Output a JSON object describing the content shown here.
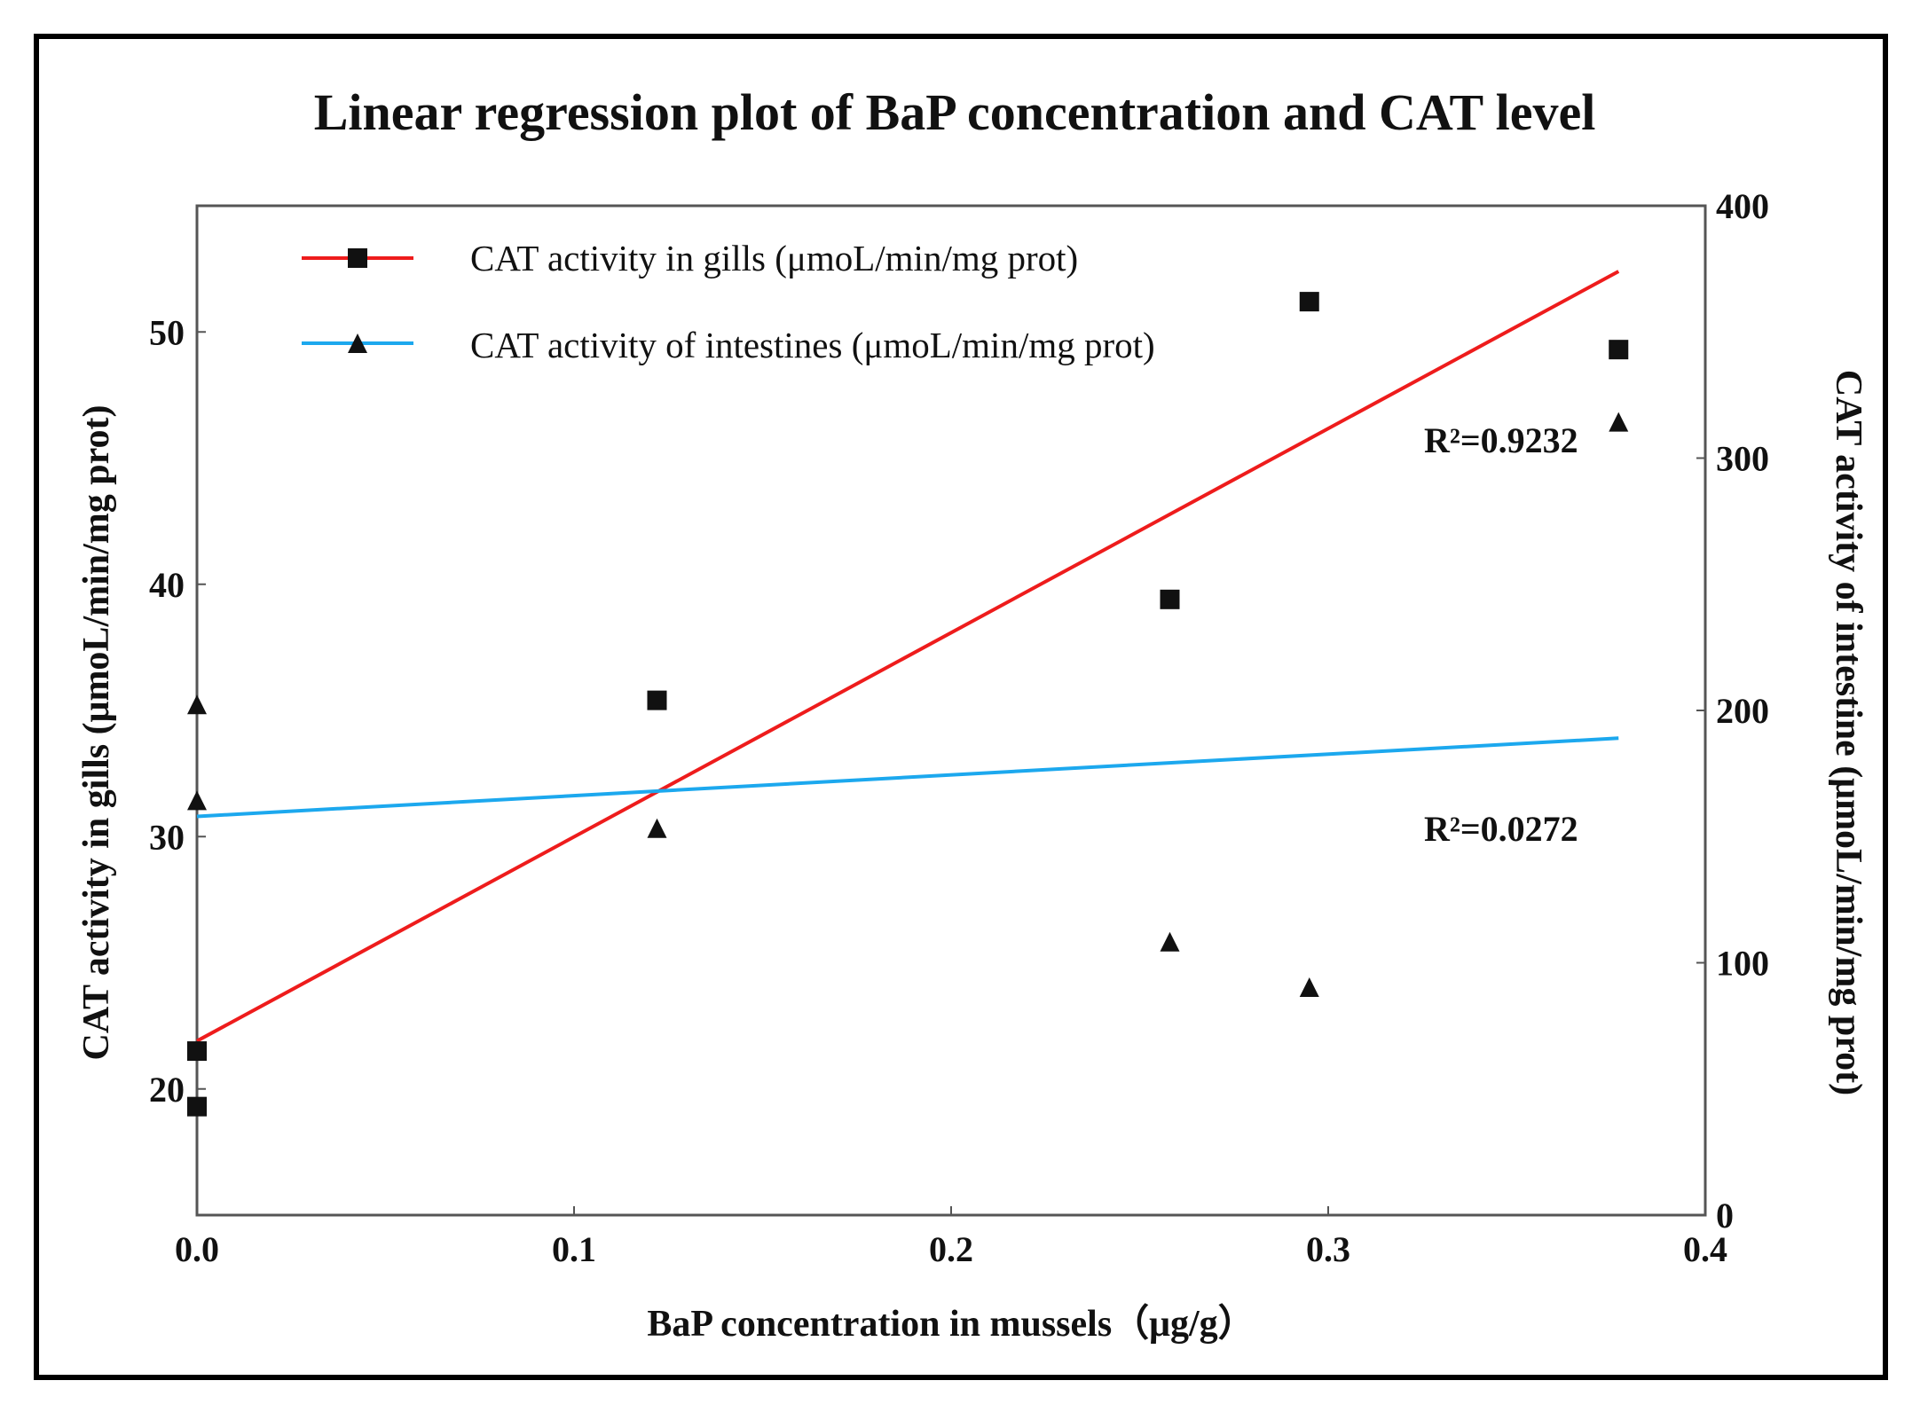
{
  "chart_data": {
    "type": "scatter",
    "title": "Linear regression plot of BaP concentration and CAT level",
    "xlabel": "BaP concentration in mussels（μg/g）",
    "ylabel_left": "CAT activity in gills (μmoL/min/mg prot)",
    "ylabel_right": "CAT activity of intestine (μmoL/min/mg prot)",
    "xlim": [
      0,
      0.4
    ],
    "ylim_left": [
      15,
      55
    ],
    "ylim_right": [
      0,
      400
    ],
    "x_ticks": [
      "0.0",
      "0.1",
      "0.2",
      "0.3",
      "0.4"
    ],
    "x_tick_values": [
      0,
      0.1,
      0.2,
      0.3,
      0.4
    ],
    "y_left_ticks": [
      "20",
      "30",
      "40",
      "50"
    ],
    "y_left_tick_values": [
      20,
      30,
      40,
      50
    ],
    "y_right_ticks": [
      "0",
      "100",
      "200",
      "300",
      "400"
    ],
    "y_right_tick_values": [
      0,
      100,
      200,
      300,
      400
    ],
    "legend_position": "top-left",
    "series": [
      {
        "name": "CAT activity in gills (μmoL/min/mg prot)",
        "axis": "left",
        "marker": "square",
        "color": "#ee1c1c",
        "x": [
          0,
          0,
          0.122,
          0.258,
          0.295,
          0.377
        ],
        "y": [
          21.5,
          19.3,
          35.4,
          39.4,
          51.2,
          49.3
        ],
        "fit": {
          "x": [
            0,
            0.377
          ],
          "y": [
            21.9,
            52.4
          ]
        },
        "r2_label": "R²=0.9232"
      },
      {
        "name": "CAT activity of intestines (μmoL/min/mg prot)",
        "axis": "right",
        "marker": "triangle",
        "color": "#1ca8ee",
        "x": [
          0,
          0,
          0.122,
          0.258,
          0.295,
          0.377
        ],
        "y": [
          202,
          164,
          153,
          108,
          90,
          314
        ],
        "fit": {
          "x": [
            0,
            0.377
          ],
          "y": [
            158,
            189
          ]
        },
        "r2_label": "R²=0.0272"
      }
    ]
  }
}
